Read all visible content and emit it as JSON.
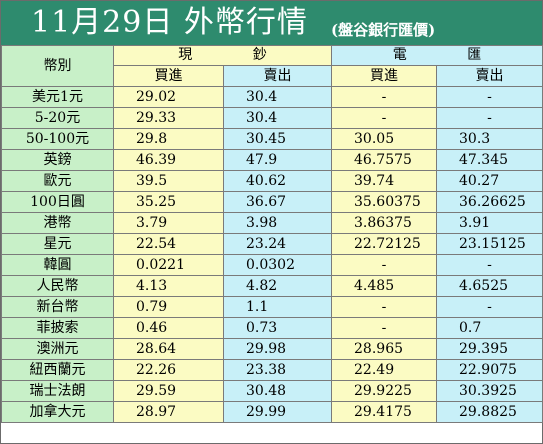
{
  "title": {
    "main": "11月29日 外幣行情",
    "sub": "(盤谷銀行匯價)"
  },
  "colors": {
    "title_bg": "#2e8b6e",
    "currency_col": "#c8f0c8",
    "cash_col": "#fbfbc3",
    "spot_col": "#c8f0f8"
  },
  "header": {
    "currency": "幣別",
    "cash_group": "現 鈔",
    "spot_group": "電 匯",
    "cash_buy": "買進",
    "cash_sell": "賣出",
    "spot_buy": "買進",
    "spot_sell": "賣出"
  },
  "rows": [
    {
      "name": "美元1元",
      "cash_buy": "29.02",
      "cash_sell": "30.4",
      "spot_buy": "-",
      "spot_sell": "-"
    },
    {
      "name": "5-20元",
      "cash_buy": "29.33",
      "cash_sell": "30.4",
      "spot_buy": "-",
      "spot_sell": "-"
    },
    {
      "name": "50-100元",
      "cash_buy": "29.8",
      "cash_sell": "30.45",
      "spot_buy": "30.05",
      "spot_sell": "30.3"
    },
    {
      "name": "英鎊",
      "cash_buy": "46.39",
      "cash_sell": "47.9",
      "spot_buy": "46.7575",
      "spot_sell": "47.345"
    },
    {
      "name": "歐元",
      "cash_buy": "39.5",
      "cash_sell": "40.62",
      "spot_buy": "39.74",
      "spot_sell": "40.27"
    },
    {
      "name": "100日圓",
      "cash_buy": "35.25",
      "cash_sell": "36.67",
      "spot_buy": "35.60375",
      "spot_sell": "36.26625"
    },
    {
      "name": "港幣",
      "cash_buy": "3.79",
      "cash_sell": "3.98",
      "spot_buy": "3.86375",
      "spot_sell": "3.91"
    },
    {
      "name": "星元",
      "cash_buy": "22.54",
      "cash_sell": "23.24",
      "spot_buy": "22.72125",
      "spot_sell": "23.15125"
    },
    {
      "name": "韓圓",
      "cash_buy": "0.0221",
      "cash_sell": "0.0302",
      "spot_buy": "-",
      "spot_sell": "-"
    },
    {
      "name": "人民幣",
      "cash_buy": "4.13",
      "cash_sell": "4.82",
      "spot_buy": "4.485",
      "spot_sell": "4.6525"
    },
    {
      "name": "新台幣",
      "cash_buy": "0.79",
      "cash_sell": "1.1",
      "spot_buy": "-",
      "spot_sell": "-"
    },
    {
      "name": "菲披索",
      "cash_buy": "0.46",
      "cash_sell": "0.73",
      "spot_buy": "-",
      "spot_sell": "0.7"
    },
    {
      "name": "澳洲元",
      "cash_buy": "28.64",
      "cash_sell": "29.98",
      "spot_buy": "28.965",
      "spot_sell": "29.395"
    },
    {
      "name": "紐西蘭元",
      "cash_buy": "22.26",
      "cash_sell": "23.38",
      "spot_buy": "22.49",
      "spot_sell": "22.9075"
    },
    {
      "name": "瑞士法朗",
      "cash_buy": "29.59",
      "cash_sell": "30.48",
      "spot_buy": "29.9225",
      "spot_sell": "30.3925"
    },
    {
      "name": "加拿大元",
      "cash_buy": "28.97",
      "cash_sell": "29.99",
      "spot_buy": "29.4175",
      "spot_sell": "29.8825"
    }
  ]
}
